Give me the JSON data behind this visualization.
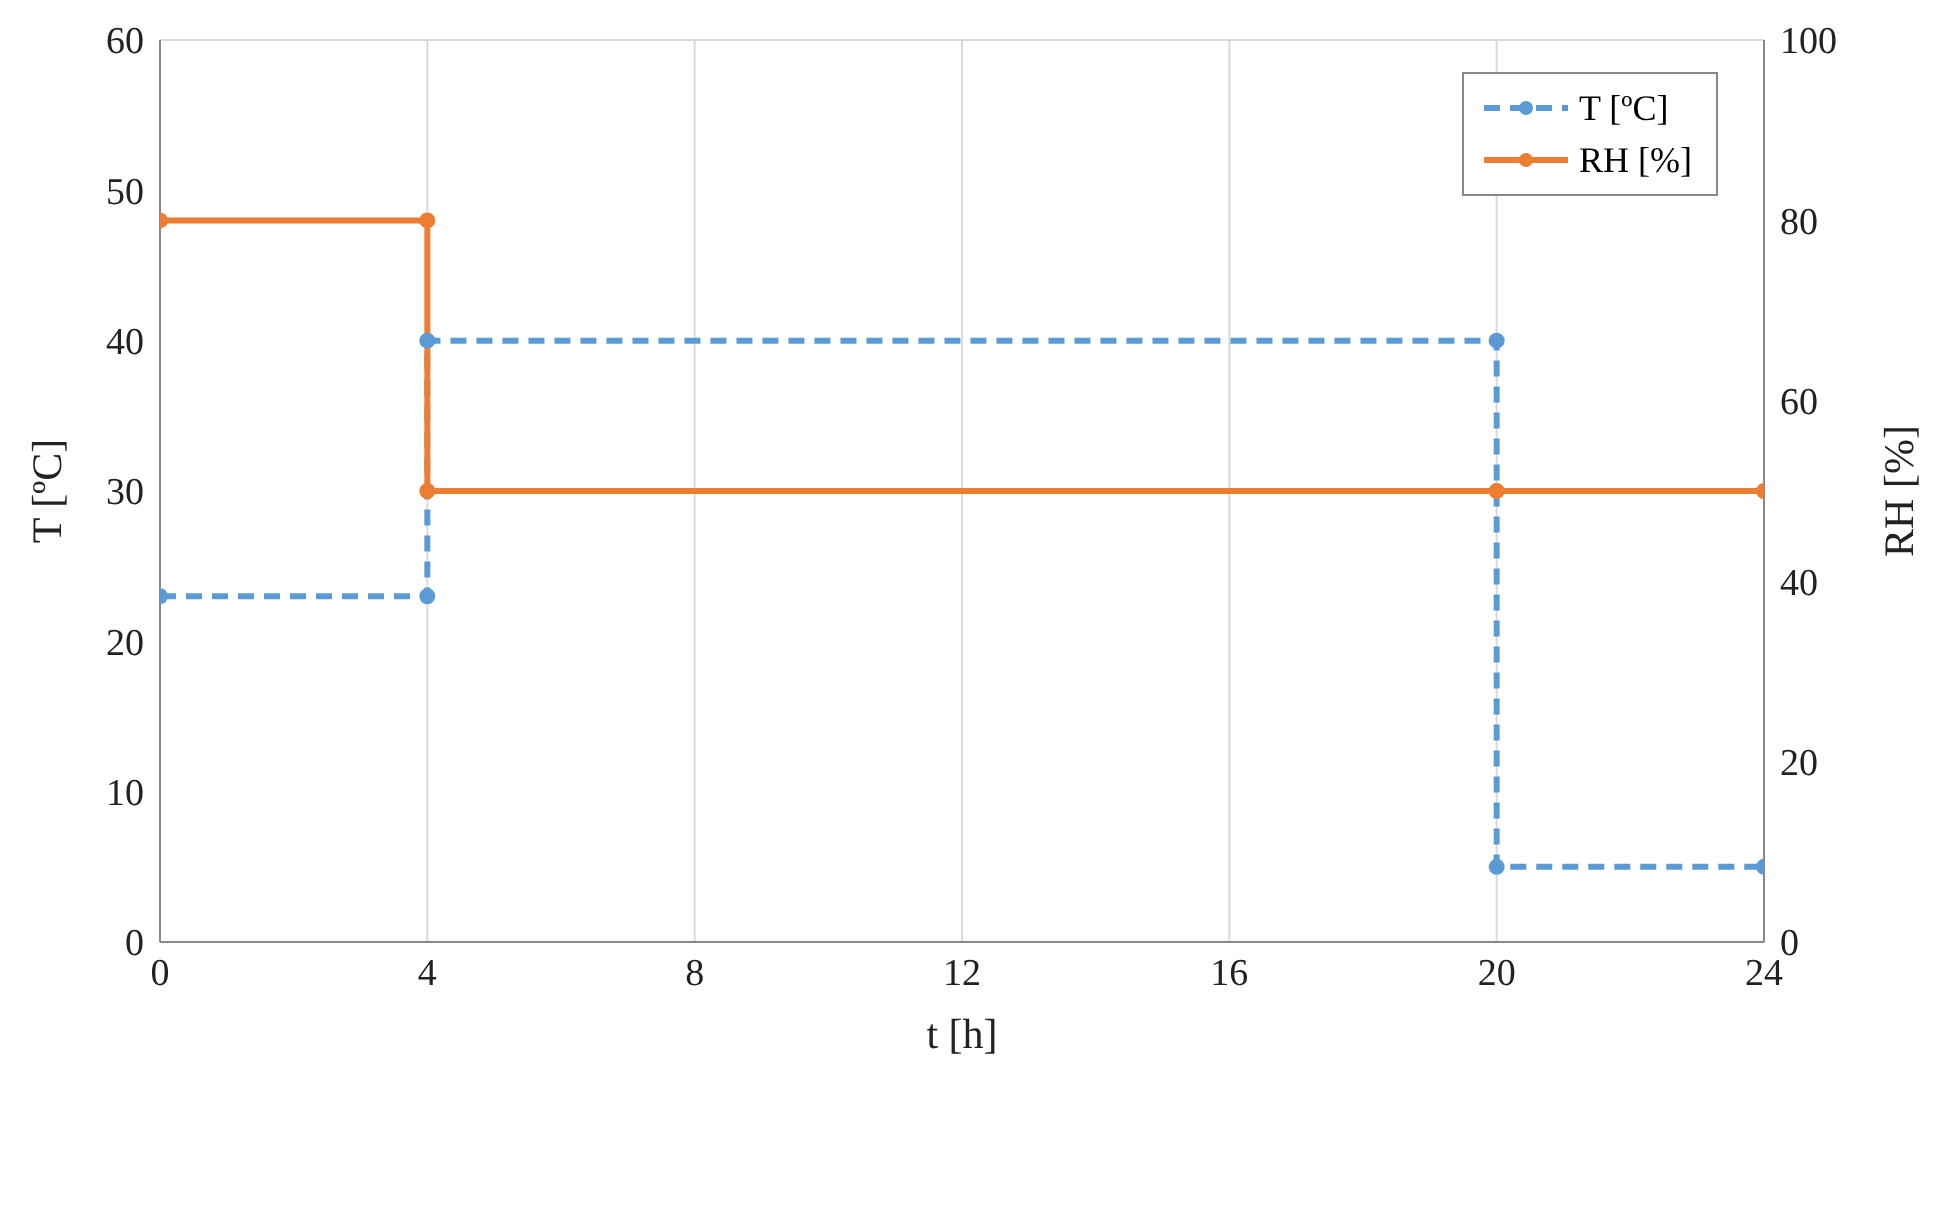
{
  "chart_data": {
    "type": "line",
    "xlabel": "t [h]",
    "ylabel": "T [ºC]",
    "y2label": "RH [%]",
    "xlim": [
      0,
      24
    ],
    "xticks": [
      0,
      4,
      8,
      12,
      16,
      20,
      24
    ],
    "ylim": [
      0,
      60
    ],
    "yticks": [
      0,
      10,
      20,
      30,
      40,
      50,
      60
    ],
    "y2lim": [
      0,
      100
    ],
    "y2ticks": [
      0,
      20,
      40,
      60,
      80,
      100
    ],
    "grid": true,
    "legend": "top right",
    "marker": "circle",
    "series": [
      {
        "name": "T [ºC]",
        "color": "#5b9bd5",
        "line_style": "dashed",
        "x": [
          0,
          4,
          4,
          20,
          20,
          24
        ],
        "values": [
          23,
          23,
          40,
          40,
          5,
          5
        ]
      },
      {
        "name": "RH [%]",
        "color": "#ed7d31",
        "line_style": "solid",
        "axis": "y2",
        "x": [
          0,
          4,
          4,
          20,
          24
        ],
        "values": [
          80,
          80,
          50,
          50,
          50
        ]
      }
    ]
  }
}
